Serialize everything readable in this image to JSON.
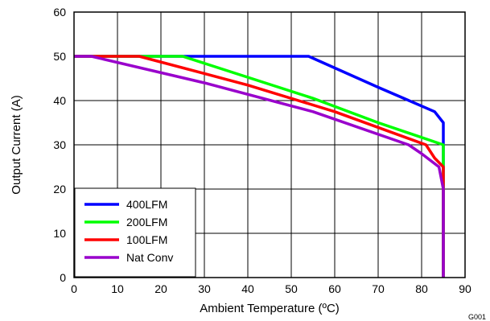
{
  "chart_data": {
    "type": "line",
    "title": "",
    "xlabel": "Ambient Temperature (ºC)",
    "ylabel": "Output Current (A)",
    "xlim": [
      0,
      90
    ],
    "ylim": [
      0,
      60
    ],
    "xticks": [
      "0",
      "10",
      "20",
      "30",
      "40",
      "50",
      "60",
      "70",
      "80",
      "90"
    ],
    "yticks": [
      "0",
      "10",
      "20",
      "30",
      "40",
      "50",
      "60"
    ],
    "grid": true,
    "legend_position": "bottom-left",
    "figure_id": "G001",
    "series": [
      {
        "name": "400LFM",
        "color": "#0000ff",
        "x": [
          0,
          54,
          70,
          83,
          85,
          85
        ],
        "y": [
          50,
          50,
          43,
          37.5,
          35,
          0
        ]
      },
      {
        "name": "200LFM",
        "color": "#00ff00",
        "x": [
          0,
          25,
          55,
          70,
          85,
          85
        ],
        "y": [
          50,
          50,
          40.5,
          35,
          30,
          0
        ]
      },
      {
        "name": "100LFM",
        "color": "#ff0000",
        "x": [
          0,
          15,
          40,
          60,
          81,
          83,
          85,
          85
        ],
        "y": [
          50,
          50,
          43.5,
          37.5,
          30,
          27,
          25,
          0
        ]
      },
      {
        "name": "Nat Conv",
        "color": "#9900cc",
        "x": [
          0,
          4,
          30,
          55,
          77,
          80,
          84,
          85,
          85
        ],
        "y": [
          50,
          50,
          44,
          37.5,
          30,
          28,
          25,
          20,
          0
        ]
      }
    ]
  }
}
